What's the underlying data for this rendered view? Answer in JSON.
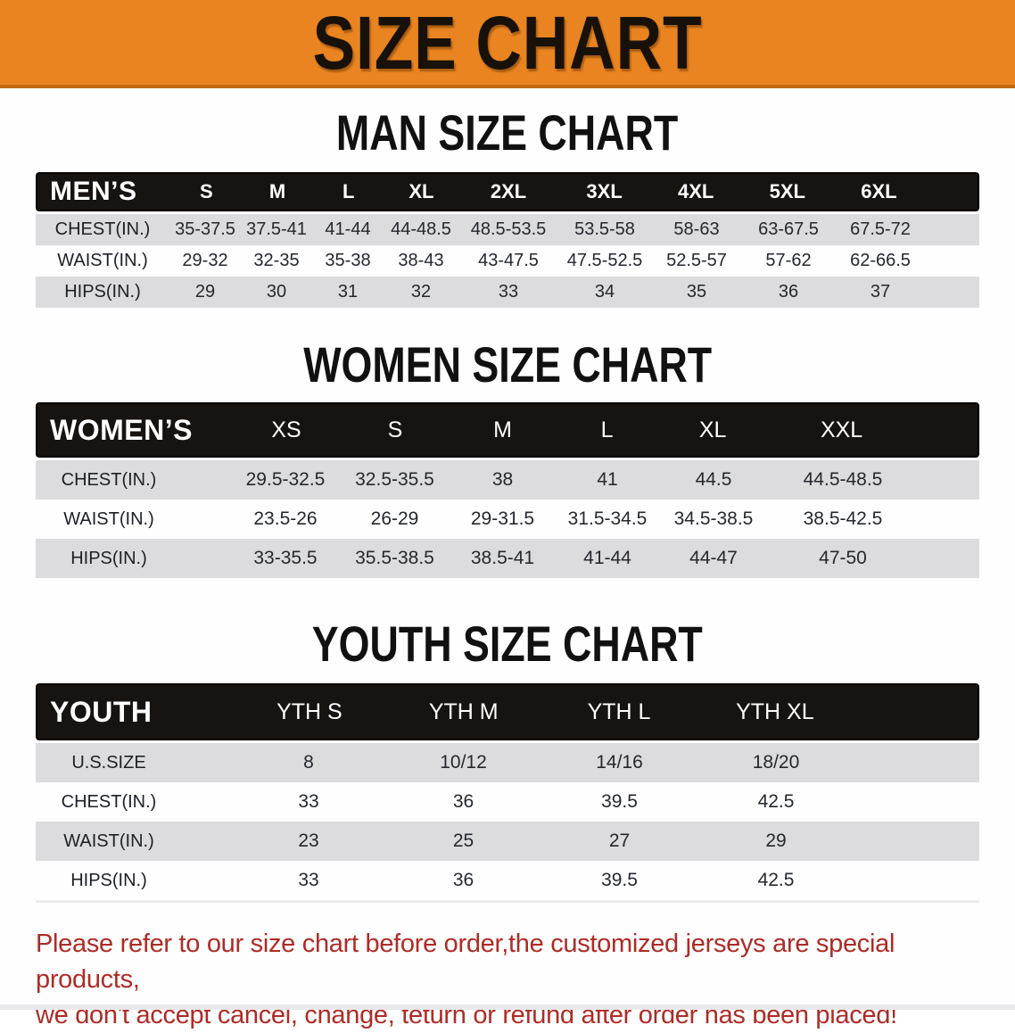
{
  "banner": {
    "title": "SIZE CHART",
    "bg_color": "#E98420",
    "edge_color": "#C1690E"
  },
  "colors": {
    "header_bar": "#171310",
    "stripe_gray": "#DCDCDE",
    "value_text": "#25282e",
    "note_red": "#AE2B26"
  },
  "men": {
    "title": "MAN SIZE CHART",
    "group": "MEN’S",
    "columns": [
      "S",
      "M",
      "L",
      "XL",
      "2XL",
      "3XL",
      "4XL",
      "5XL",
      "6XL"
    ],
    "rows": [
      {
        "label": "CHEST(IN.)",
        "values": [
          "35-37.5",
          "37.5-41",
          "41-44",
          "44-48.5",
          "48.5-53.5",
          "53.5-58",
          "58-63",
          "63-67.5",
          "67.5-72"
        ]
      },
      {
        "label": "WAIST(IN.)",
        "values": [
          "29-32",
          "32-35",
          "35-38",
          "38-43",
          "43-47.5",
          "47.5-52.5",
          "52.5-57",
          "57-62",
          "62-66.5"
        ]
      },
      {
        "label": "HIPS(IN.)",
        "values": [
          "29",
          "30",
          "31",
          "32",
          "33",
          "34",
          "35",
          "36",
          "37"
        ]
      }
    ]
  },
  "women": {
    "title": "WOMEN SIZE CHART",
    "group": "WOMEN’S",
    "columns": [
      "XS",
      "S",
      "M",
      "L",
      "XL",
      "XXL"
    ],
    "rows": [
      {
        "label": "CHEST(IN.)",
        "values": [
          "29.5-32.5",
          "32.5-35.5",
          "38",
          "41",
          "44.5",
          "44.5-48.5"
        ]
      },
      {
        "label": "WAIST(IN.)",
        "values": [
          "23.5-26",
          "26-29",
          "29-31.5",
          "31.5-34.5",
          "34.5-38.5",
          "38.5-42.5"
        ]
      },
      {
        "label": "HIPS(IN.)",
        "values": [
          "33-35.5",
          "35.5-38.5",
          "38.5-41",
          "41-44",
          "44-47",
          "47-50"
        ]
      }
    ]
  },
  "youth": {
    "title": "YOUTH SIZE CHART",
    "group": "YOUTH",
    "columns": [
      "YTH S",
      "YTH M",
      "YTH L",
      "YTH XL"
    ],
    "rows": [
      {
        "label": "U.S.SIZE",
        "values": [
          "8",
          "10/12",
          "14/16",
          "18/20"
        ]
      },
      {
        "label": "CHEST(IN.)",
        "values": [
          "33",
          "36",
          "39.5",
          "42.5"
        ]
      },
      {
        "label": "WAIST(IN.)",
        "values": [
          "23",
          "25",
          "27",
          "29"
        ]
      },
      {
        "label": "HIPS(IN.)",
        "values": [
          "33",
          "36",
          "39.5",
          "42.5"
        ]
      }
    ]
  },
  "note": {
    "line1": "Please refer to our size chart before order,the customized jerseys are special products,",
    "line2": "we don't accept cancel, change, teturn or refund after order has been placed!"
  }
}
